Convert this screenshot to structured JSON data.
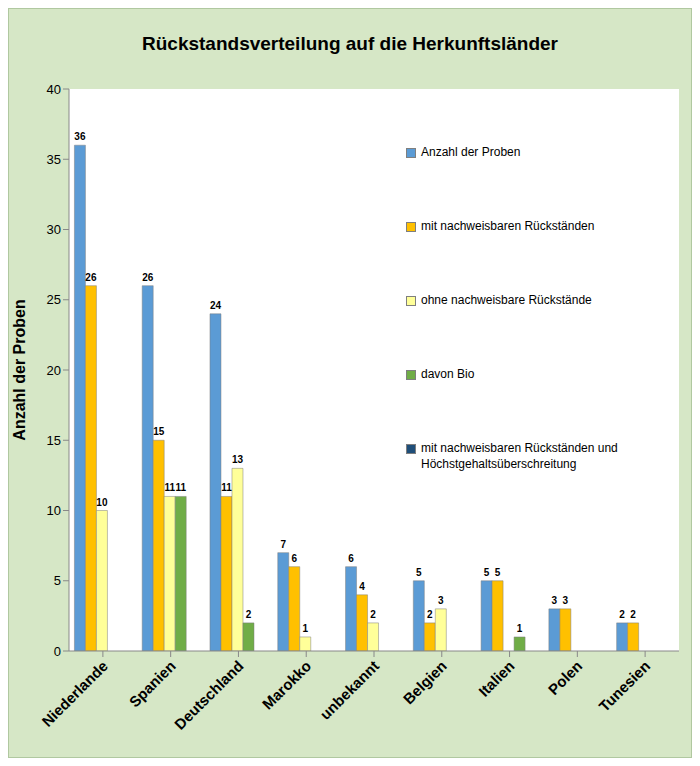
{
  "chart_data": {
    "type": "bar",
    "title": "Rückstandsverteilung auf die Herkunftsländer",
    "y_label": "Anzahl der Proben",
    "categories": [
      "Niederlande",
      "Spanien",
      "Deutschland",
      "Marokko",
      "unbekannt",
      "Belgien",
      "Italien",
      "Polen",
      "Tunesien"
    ],
    "series": [
      {
        "name": "Anzahl der Proben",
        "color": "#5b9bd5",
        "values": [
          36,
          26,
          24,
          7,
          6,
          5,
          5,
          3,
          2
        ]
      },
      {
        "name": "mit nachweisbaren Rückständen",
        "color": "#ffc000",
        "values": [
          26,
          15,
          11,
          6,
          4,
          2,
          5,
          3,
          2
        ]
      },
      {
        "name": "ohne nachweisbare Rückstände",
        "color": "#ffff99",
        "values": [
          10,
          11,
          13,
          1,
          2,
          3,
          null,
          null,
          null
        ]
      },
      {
        "name": "davon Bio",
        "color": "#70ad47",
        "values": [
          null,
          11,
          2,
          null,
          null,
          null,
          1,
          null,
          null
        ]
      },
      {
        "name": "mit nachweisbaren Rückständen und Höchstgehaltsüberschreitung",
        "color": "#1f4e79",
        "values": [
          null,
          null,
          null,
          null,
          null,
          null,
          null,
          null,
          null
        ]
      }
    ],
    "ylim": [
      0,
      40
    ],
    "yticks": [
      0,
      5,
      10,
      15,
      20,
      25,
      30,
      35,
      40
    ],
    "grid": false,
    "legend": "upper right",
    "data_labels": true
  }
}
